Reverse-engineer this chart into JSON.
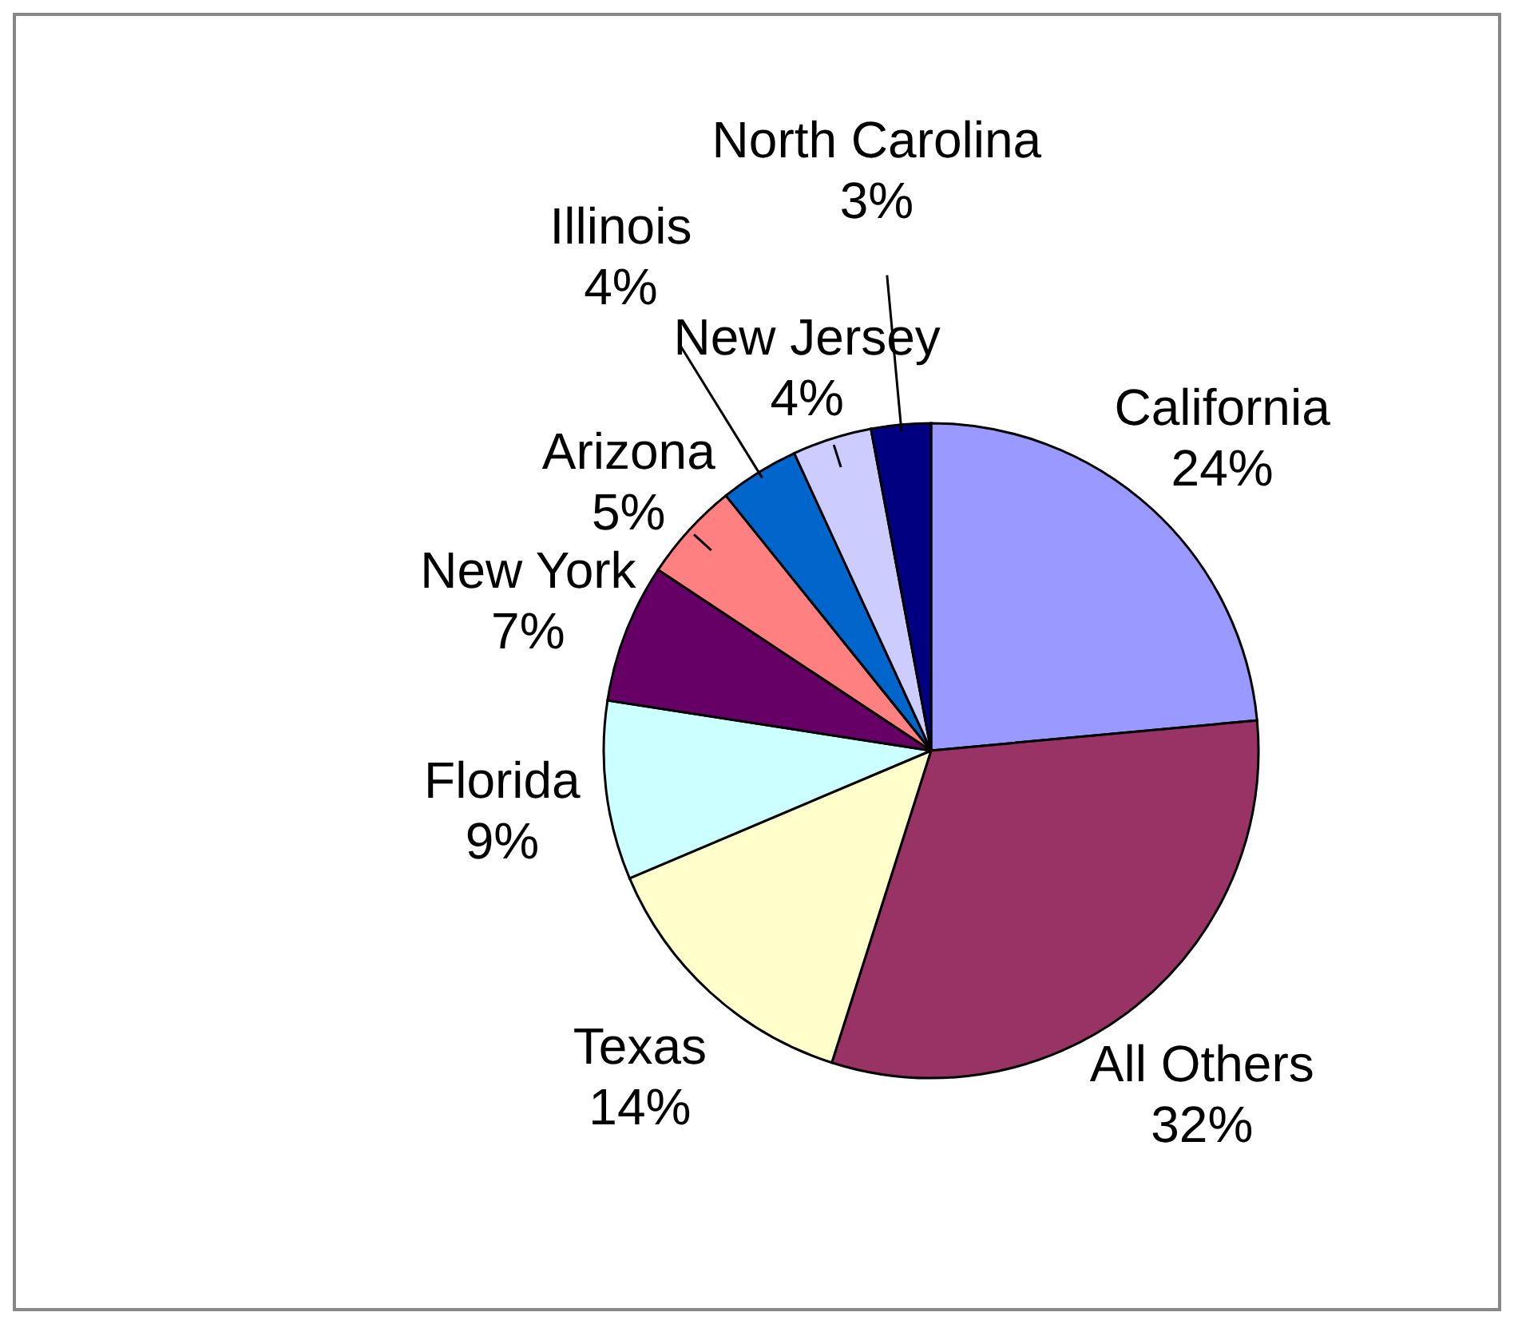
{
  "chart_data": {
    "type": "pie",
    "categories": [
      "California",
      "All Others",
      "Texas",
      "Florida",
      "New York",
      "Arizona",
      "Illinois",
      "New Jersey",
      "North Carolina"
    ],
    "values": [
      24,
      32,
      14,
      9,
      7,
      5,
      4,
      4,
      3
    ],
    "colors": [
      "#9999ff",
      "#993366",
      "#ffffcc",
      "#ccffff",
      "#660066",
      "#ff8080",
      "#0066cc",
      "#ccccff",
      "#000080"
    ],
    "value_labels": [
      "24%",
      "32%",
      "14%",
      "9%",
      "7%",
      "5%",
      "4%",
      "4%",
      "3%"
    ]
  }
}
